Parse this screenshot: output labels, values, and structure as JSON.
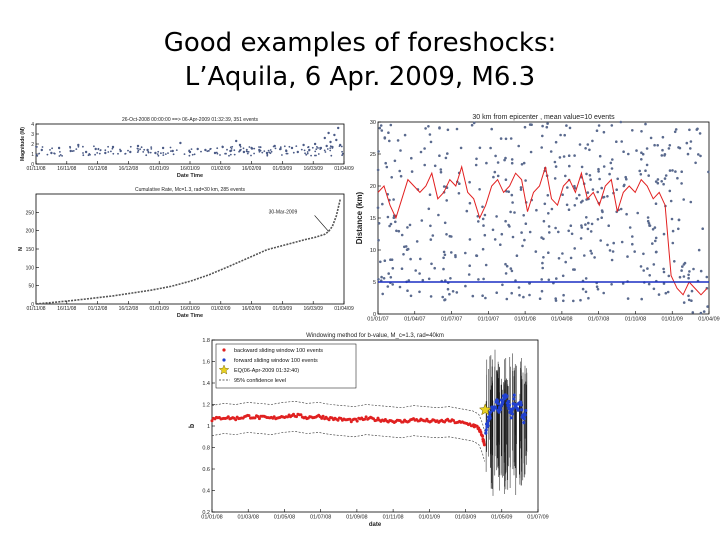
{
  "slide": {
    "title_line1": "Good examples of foreshocks:",
    "title_line2": "L’Aquila, 6 Apr. 2009, M6.3"
  },
  "chart_data": [
    {
      "id": "magnitude",
      "type": "scatter",
      "title": "26-Oct-2008 00:00:00 ==> 06-Apr-2009 01:32:39, 351 events",
      "xlabel": "Date Time",
      "ylabel": "Magnitude (M)",
      "ylim": [
        0,
        4
      ],
      "yticks": [
        "0",
        "1",
        "2",
        "3",
        "4"
      ],
      "xticks": [
        "01/11/08",
        "16/11/08",
        "01/12/08",
        "16/12/08",
        "01/01/09",
        "16/01/09",
        "01/02/09",
        "16/02/09",
        "01/03/09",
        "16/03/09",
        "01/04/09"
      ],
      "xlim_days": [
        0,
        160
      ],
      "series": [
        {
          "name": "events",
          "color": "#4a5a86",
          "points": [
            [
              3,
              1.4
            ],
            [
              8,
              1.1
            ],
            [
              12,
              1.6
            ],
            [
              18,
              1.3
            ],
            [
              22,
              1.9
            ],
            [
              26,
              1.2
            ],
            [
              31,
              1.5
            ],
            [
              36,
              1.1
            ],
            [
              40,
              1.7
            ],
            [
              44,
              1.3
            ],
            [
              49,
              1.2
            ],
            [
              53,
              1.8
            ],
            [
              58,
              1.4
            ],
            [
              62,
              1.1
            ],
            [
              66,
              1.6
            ],
            [
              71,
              1.3
            ],
            [
              75,
              2.1
            ],
            [
              80,
              1.2
            ],
            [
              84,
              1.5
            ],
            [
              88,
              1.4
            ],
            [
              93,
              1.1
            ],
            [
              97,
              1.7
            ],
            [
              101,
              1.3
            ],
            [
              104,
              2.3
            ],
            [
              106,
              1.9
            ],
            [
              108,
              1.2
            ],
            [
              112,
              1.6
            ],
            [
              116,
              1.4
            ],
            [
              120,
              1.1
            ],
            [
              124,
              1.8
            ],
            [
              127,
              1.5
            ],
            [
              130,
              1.3
            ],
            [
              133,
              1.6
            ],
            [
              136,
              1.2
            ],
            [
              139,
              1.9
            ],
            [
              142,
              1.4
            ],
            [
              145,
              2.0
            ],
            [
              148,
              1.6
            ],
            [
              150,
              2.6
            ],
            [
              151,
              1.8
            ],
            [
              152,
              3.1
            ],
            [
              153,
              2.2
            ],
            [
              154,
              1.7
            ],
            [
              155,
              2.9
            ],
            [
              156,
              2.4
            ],
            [
              157,
              3.6
            ],
            [
              158,
              1.9
            ]
          ]
        }
      ]
    },
    {
      "id": "cumulative",
      "type": "line",
      "title": "Cumulative Rate, Mc=1.3, rad=30 km, 285 events",
      "annotation": "30-Mar-2009",
      "xlabel": "Date Time",
      "ylabel": "N",
      "ylim": [
        0,
        300
      ],
      "yticks": [
        "0",
        "50",
        "100",
        "150",
        "200",
        "250"
      ],
      "xticks": [
        "01/11/08",
        "16/11/08",
        "01/12/08",
        "16/12/08",
        "01/01/09",
        "16/01/09",
        "01/02/09",
        "16/02/09",
        "01/03/09",
        "16/03/09",
        "01/04/09"
      ],
      "xlim_days": [
        0,
        160
      ],
      "x": [
        0,
        10,
        20,
        30,
        40,
        50,
        60,
        70,
        80,
        90,
        100,
        110,
        120,
        130,
        140,
        145,
        150,
        152,
        154,
        156,
        158
      ],
      "y": [
        0,
        5,
        10,
        16,
        22,
        30,
        38,
        48,
        62,
        80,
        102,
        125,
        148,
        162,
        176,
        182,
        190,
        198,
        212,
        240,
        285
      ]
    },
    {
      "id": "distance",
      "type": "scatter",
      "title": "30 km from epicenter , mean value=10 events",
      "xlabel": "",
      "ylabel": "Distance (km)",
      "ylim": [
        0,
        30
      ],
      "yticks": [
        "0",
        "5",
        "10",
        "15",
        "20",
        "25",
        "30"
      ],
      "xticks": [
        "01/01/07",
        "01/04/07",
        "01/07/07",
        "01/10/07",
        "01/01/08",
        "01/04/08",
        "01/07/08",
        "01/10/08",
        "01/01/09",
        "01/04/09"
      ],
      "xlim_days": [
        0,
        830
      ],
      "reference_line": {
        "y": 5,
        "color": "#1a2fc4"
      },
      "mean_series": {
        "name": "running mean",
        "color": "#e22020",
        "x": [
          0,
          15,
          30,
          45,
          60,
          75,
          90,
          105,
          120,
          135,
          150,
          165,
          180,
          195,
          210,
          225,
          240,
          255,
          270,
          285,
          300,
          315,
          330,
          345,
          360,
          375,
          390,
          405,
          420,
          435,
          450,
          465,
          480,
          495,
          510,
          525,
          540,
          555,
          570,
          585,
          600,
          615,
          630,
          645,
          660,
          675,
          690,
          705,
          720,
          735,
          750,
          765,
          780,
          795,
          810,
          825
        ],
        "y": [
          19,
          20,
          17,
          15,
          18,
          21,
          20,
          19,
          20,
          22,
          18,
          19,
          21,
          20,
          23,
          19,
          18,
          15,
          17,
          20,
          21,
          19,
          20,
          22,
          21,
          16,
          19,
          20,
          23,
          18,
          17,
          20,
          21,
          19,
          22,
          18,
          19,
          17,
          20,
          21,
          16,
          19,
          20,
          19,
          21,
          20,
          18,
          19,
          17,
          6,
          4,
          3,
          5,
          4,
          3,
          4
        ]
      },
      "events_color": "#5a6a8e"
    },
    {
      "id": "b_value",
      "type": "line",
      "title": "Windowing method for b-value, M_c=1.3, rad=40km",
      "xlabel": "date",
      "ylabel": "b",
      "ylim": [
        0.2,
        1.8
      ],
      "yticks": [
        "0.2",
        "0.4",
        "0.6",
        "0.8",
        "1",
        "1.2",
        "1.4",
        "1.6",
        "1.8"
      ],
      "xticks": [
        "01/01/08",
        "01/03/08",
        "01/05/08",
        "01/07/08",
        "01/09/08",
        "01/11/08",
        "01/01/09",
        "01/03/09",
        "01/05/09",
        "01/07/09"
      ],
      "xlim_days": [
        0,
        550
      ],
      "legend": [
        {
          "label": "backward sliding window 100 events",
          "color": "#e02020",
          "style": "dots"
        },
        {
          "label": "forward sliding window 100 events",
          "color": "#2040d0",
          "style": "dots"
        },
        {
          "label": "EQ(06-Apr-2009 01:32:40)",
          "color": "#e8d020",
          "style": "star"
        },
        {
          "label": "95% confidence level",
          "color": "#333333",
          "style": "dashed"
        }
      ],
      "legend_position": "top-left",
      "mainshock": {
        "x": 461,
        "y": 1.15
      },
      "series": [
        {
          "name": "backward",
          "color": "#e02020",
          "x": [
            0,
            20,
            40,
            60,
            80,
            100,
            120,
            140,
            160,
            180,
            200,
            220,
            240,
            260,
            280,
            300,
            320,
            340,
            360,
            380,
            400,
            420,
            440,
            450,
            456,
            460
          ],
          "y": [
            1.06,
            1.08,
            1.07,
            1.09,
            1.08,
            1.07,
            1.09,
            1.1,
            1.08,
            1.09,
            1.07,
            1.06,
            1.05,
            1.07,
            1.06,
            1.05,
            1.04,
            1.06,
            1.05,
            1.04,
            1.05,
            1.03,
            1.01,
            0.98,
            0.9,
            0.82
          ]
        },
        {
          "name": "forward",
          "color": "#2040d0",
          "x": [
            462,
            466,
            470,
            475,
            480,
            485,
            490,
            495,
            500,
            505,
            510,
            515,
            520,
            525,
            530
          ],
          "y": [
            0.95,
            1.05,
            1.12,
            1.18,
            1.22,
            1.15,
            1.25,
            1.3,
            1.2,
            1.1,
            1.25,
            1.15,
            1.22,
            1.05,
            1.12
          ]
        }
      ]
    }
  ]
}
